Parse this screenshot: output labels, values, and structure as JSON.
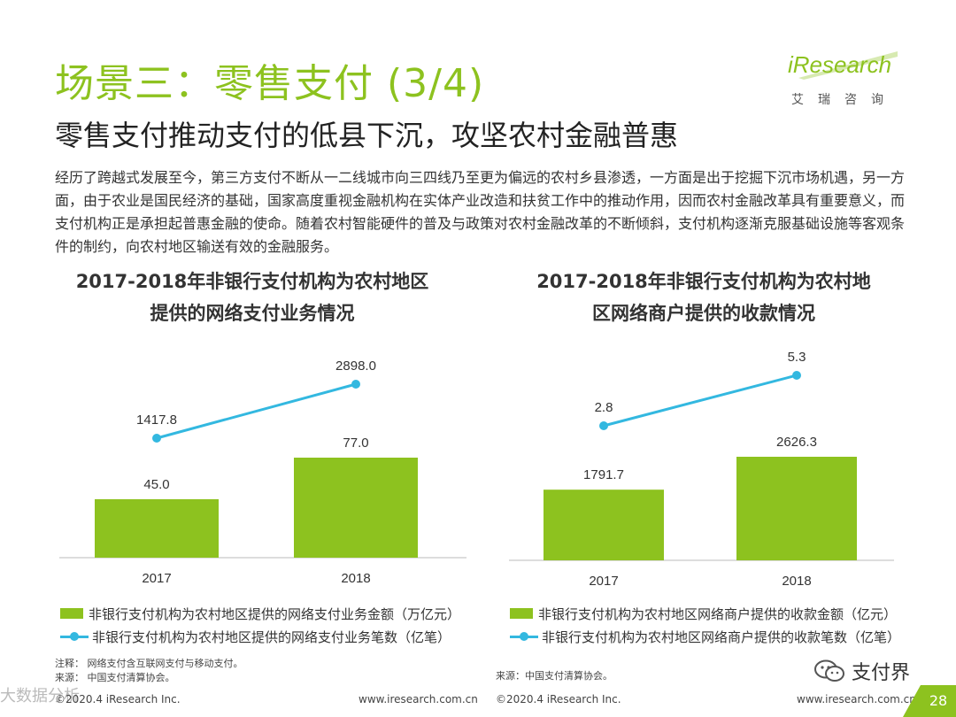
{
  "header": {
    "title": "场景三：零售支付 (3/4)",
    "subtitle": "零售支付推动支付的低县下沉，攻坚农村金融普惠",
    "logo_text": "iResearch",
    "logo_sub": "艾瑞咨询"
  },
  "intro": "经历了跨越式发展至今，第三方支付不断从一二线城市向三四线乃至更为偏远的农村乡县渗透，一方面是出于挖掘下沉市场机遇，另一方面，由于农业是国民经济的基础，国家高度重视金融机构在实体产业改造和扶贫工作中的推动作用，因而农村金融改革具有重要意义，而支付机构正是承担起普惠金融的使命。随着农村智能硬件的普及与政策对农村金融改革的不断倾斜，支付机构逐渐克服基础设施等客观条件的制约，向农村地区输送有效的金融服务。",
  "chart_data": [
    {
      "type": "bar",
      "title_line1": "2017-2018年非银行支付机构为农村地区",
      "title_line2": "提供的网络支付业务情况",
      "categories": [
        "2017",
        "2018"
      ],
      "series": [
        {
          "name": "非银行支付机构为农村地区提供的网络支付业务金额（万亿元）",
          "kind": "bar",
          "values": [
            45.0,
            77.0
          ],
          "labels": [
            "45.0",
            "77.0"
          ]
        },
        {
          "name": "非银行支付机构为农村地区提供的网络支付业务笔数（亿笔）",
          "kind": "line",
          "values": [
            1417.8,
            2898.0
          ],
          "labels": [
            "1417.8",
            "2898.0"
          ]
        }
      ],
      "colors": {
        "bar": "#8dc21f",
        "line": "#33b8e0"
      }
    },
    {
      "type": "bar",
      "title_line1": "2017-2018年非银行支付机构为农村地",
      "title_line2": "区网络商户提供的收款情况",
      "categories": [
        "2017",
        "2018"
      ],
      "series": [
        {
          "name": "非银行支付机构为农村地区网络商户提供的收款金额（亿元）",
          "kind": "bar",
          "values": [
            1791.7,
            2626.3
          ],
          "labels": [
            "1791.7",
            "2626.3"
          ]
        },
        {
          "name": "非银行支付机构为农村地区网络商户提供的收款笔数（亿笔）",
          "kind": "line",
          "values": [
            2.8,
            5.3
          ],
          "labels": [
            "2.8",
            "5.3"
          ]
        }
      ],
      "colors": {
        "bar": "#8dc21f",
        "line": "#33b8e0"
      }
    }
  ],
  "notes": {
    "left_note": "注释：  网络支付含互联网支付与移动支付。",
    "left_source": "来源：  中国支付清算协会。",
    "right_source": "来源：中国支付清算协会。"
  },
  "footer": {
    "copyright_left": "©2020.4 iResearch Inc.",
    "url_left": "www.iresearch.com.cn",
    "copyright_right": "©2020.4 iResearch Inc.",
    "url_right": "www.iresearch.com.cn",
    "page": "28",
    "wechat": "支付界",
    "watermark": "大数据分析"
  }
}
